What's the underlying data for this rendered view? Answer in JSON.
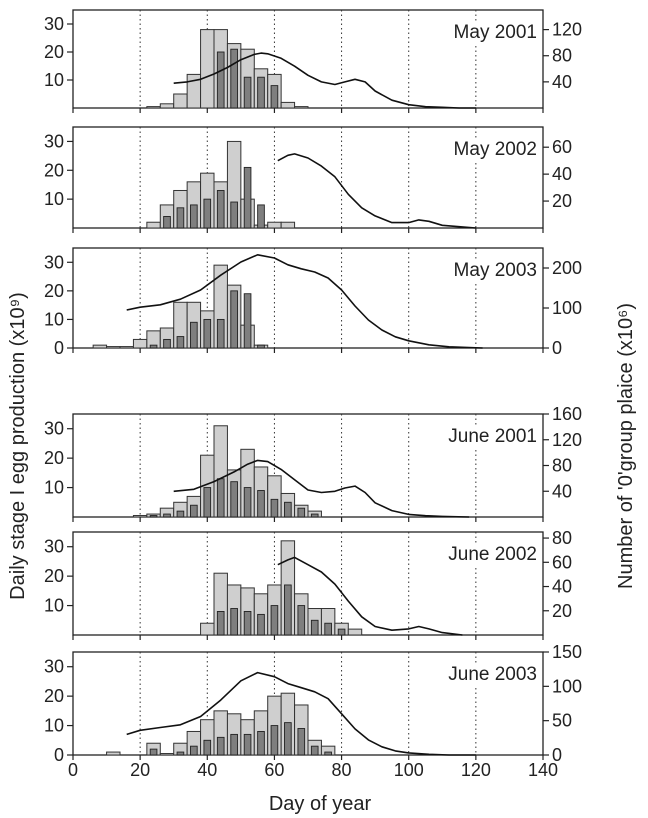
{
  "figure": {
    "ylabel_left": "Daily stage I egg production (x10⁹)",
    "ylabel_right": "Number of '0'group plaice (x10⁶)",
    "xlabel": "Day of year"
  },
  "chart_data": [
    {
      "type": "bar",
      "title": "May 2001",
      "x_axis": {
        "range": [
          0,
          140
        ],
        "ticks": [
          0,
          20,
          40,
          60,
          80,
          100,
          120,
          140
        ],
        "tick_labels_shown": false,
        "label": ""
      },
      "y_left": {
        "range": [
          0,
          35
        ],
        "ticks": [
          10,
          20,
          30
        ]
      },
      "y_right": {
        "range": [
          0,
          150
        ],
        "ticks": [
          40,
          80,
          120
        ]
      },
      "dotted_gridlines_x": [
        20,
        40,
        60,
        80,
        100,
        120
      ],
      "bin_centers": [
        24,
        28,
        32,
        36,
        40,
        44,
        48,
        52,
        56,
        60,
        64,
        68,
        72,
        76,
        80,
        84,
        88,
        92
      ],
      "light_bars": [
        0.5,
        1.5,
        5,
        12,
        28,
        28,
        23,
        21,
        14,
        12,
        2,
        0.5,
        0,
        0,
        0,
        0,
        0,
        0
      ],
      "dark_bars": [
        0,
        0,
        0,
        0,
        0,
        20,
        21,
        11,
        11,
        8,
        0,
        0,
        0,
        0,
        0,
        0,
        0,
        0
      ],
      "curve": [
        [
          30,
          38
        ],
        [
          34,
          40
        ],
        [
          38,
          44
        ],
        [
          42,
          52
        ],
        [
          46,
          62
        ],
        [
          50,
          74
        ],
        [
          54,
          82
        ],
        [
          56,
          84
        ],
        [
          58,
          83
        ],
        [
          62,
          76
        ],
        [
          66,
          64
        ],
        [
          70,
          50
        ],
        [
          74,
          40
        ],
        [
          78,
          36
        ],
        [
          81,
          40
        ],
        [
          84,
          44
        ],
        [
          87,
          40
        ],
        [
          90,
          26
        ],
        [
          95,
          12
        ],
        [
          100,
          5
        ],
        [
          105,
          2
        ],
        [
          110,
          1
        ],
        [
          115,
          0
        ],
        [
          120,
          0
        ]
      ]
    },
    {
      "type": "bar",
      "title": "May 2002",
      "x_axis": {
        "range": [
          0,
          140
        ],
        "ticks": [
          0,
          20,
          40,
          60,
          80,
          100,
          120,
          140
        ],
        "tick_labels_shown": false,
        "label": ""
      },
      "y_left": {
        "range": [
          0,
          35
        ],
        "ticks": [
          10,
          20,
          30
        ]
      },
      "y_right": {
        "range": [
          0,
          75
        ],
        "ticks": [
          20,
          40,
          60
        ]
      },
      "dotted_gridlines_x": [
        20,
        40,
        60,
        80,
        100,
        120
      ],
      "bin_centers": [
        24,
        28,
        32,
        36,
        40,
        44,
        48,
        52,
        56,
        60,
        64,
        68,
        72,
        76,
        80,
        84,
        88,
        92
      ],
      "light_bars": [
        2,
        8,
        13,
        16,
        19,
        16,
        30,
        10,
        1,
        2,
        2,
        0,
        0,
        0,
        0,
        0,
        0,
        0
      ],
      "dark_bars": [
        0,
        4,
        7,
        8,
        10,
        13,
        9,
        21,
        8,
        0,
        0,
        0,
        0,
        0,
        0,
        0,
        0,
        0
      ],
      "curve": [
        [
          61,
          50
        ],
        [
          64,
          54
        ],
        [
          66,
          55
        ],
        [
          70,
          52
        ],
        [
          74,
          46
        ],
        [
          78,
          38
        ],
        [
          82,
          25
        ],
        [
          86,
          15
        ],
        [
          90,
          9
        ],
        [
          95,
          4
        ],
        [
          100,
          4
        ],
        [
          103,
          6
        ],
        [
          106,
          5
        ],
        [
          110,
          2
        ],
        [
          115,
          1
        ],
        [
          120,
          0
        ]
      ]
    },
    {
      "type": "bar",
      "title": "May 2003",
      "x_axis": {
        "range": [
          0,
          140
        ],
        "ticks": [
          0,
          20,
          40,
          60,
          80,
          100,
          120,
          140
        ],
        "tick_labels_shown": false,
        "label": ""
      },
      "y_left": {
        "range": [
          0,
          35
        ],
        "ticks": [
          0,
          10,
          20,
          30
        ]
      },
      "y_right": {
        "range": [
          0,
          250
        ],
        "ticks": [
          0,
          100,
          200
        ]
      },
      "dotted_gridlines_x": [
        20,
        40,
        60,
        80,
        100,
        120
      ],
      "bin_centers": [
        8,
        12,
        16,
        20,
        24,
        28,
        32,
        36,
        40,
        44,
        48,
        52,
        56,
        60,
        64,
        68,
        72,
        76,
        80,
        84,
        88,
        92
      ],
      "light_bars": [
        1,
        0.5,
        0.5,
        3,
        6,
        7,
        16,
        16,
        13,
        29,
        22,
        8,
        1,
        0,
        0,
        0,
        0,
        0,
        0,
        0,
        0,
        0
      ],
      "dark_bars": [
        0,
        0,
        0,
        0,
        1,
        3,
        4,
        9,
        10,
        10,
        20,
        19,
        1,
        0,
        0,
        0,
        0,
        0,
        0,
        0,
        0,
        0
      ],
      "curve": [
        [
          16,
          95
        ],
        [
          20,
          102
        ],
        [
          26,
          108
        ],
        [
          32,
          122
        ],
        [
          38,
          145
        ],
        [
          44,
          182
        ],
        [
          50,
          215
        ],
        [
          55,
          233
        ],
        [
          60,
          225
        ],
        [
          64,
          208
        ],
        [
          68,
          198
        ],
        [
          72,
          190
        ],
        [
          76,
          175
        ],
        [
          80,
          145
        ],
        [
          84,
          105
        ],
        [
          88,
          70
        ],
        [
          92,
          45
        ],
        [
          96,
          28
        ],
        [
          100,
          18
        ],
        [
          106,
          8
        ],
        [
          112,
          3
        ],
        [
          118,
          1
        ],
        [
          122,
          0
        ]
      ]
    },
    {
      "type": "bar",
      "title": "June 2001",
      "x_axis": {
        "range": [
          0,
          140
        ],
        "ticks": [
          0,
          20,
          40,
          60,
          80,
          100,
          120,
          140
        ],
        "tick_labels_shown": false,
        "label": ""
      },
      "y_left": {
        "range": [
          0,
          35
        ],
        "ticks": [
          10,
          20,
          30
        ]
      },
      "y_right": {
        "range": [
          0,
          160
        ],
        "ticks": [
          40,
          80,
          120,
          160
        ]
      },
      "dotted_gridlines_x": [
        20,
        40,
        60,
        80,
        100,
        120
      ],
      "bin_centers": [
        16,
        20,
        24,
        28,
        32,
        36,
        40,
        44,
        48,
        52,
        56,
        60,
        64,
        68,
        72,
        76,
        80,
        84,
        88,
        92
      ],
      "light_bars": [
        0,
        0.5,
        1,
        3,
        5,
        7,
        21,
        31,
        16,
        23,
        17,
        14,
        8,
        4,
        2,
        0,
        0,
        0,
        0,
        0
      ],
      "dark_bars": [
        0,
        0,
        0.5,
        1,
        2,
        4,
        10,
        13,
        12,
        10,
        9,
        6,
        5,
        3,
        1,
        0,
        0,
        0,
        0,
        0
      ],
      "curve": [
        [
          30,
          40
        ],
        [
          36,
          43
        ],
        [
          42,
          55
        ],
        [
          48,
          70
        ],
        [
          52,
          82
        ],
        [
          55,
          88
        ],
        [
          58,
          86
        ],
        [
          62,
          74
        ],
        [
          66,
          58
        ],
        [
          70,
          42
        ],
        [
          74,
          38
        ],
        [
          78,
          40
        ],
        [
          81,
          45
        ],
        [
          84,
          48
        ],
        [
          87,
          38
        ],
        [
          90,
          22
        ],
        [
          95,
          10
        ],
        [
          100,
          4
        ],
        [
          105,
          2
        ],
        [
          110,
          1
        ],
        [
          118,
          0
        ]
      ]
    },
    {
      "type": "bar",
      "title": "June 2002",
      "x_axis": {
        "range": [
          0,
          140
        ],
        "ticks": [
          0,
          20,
          40,
          60,
          80,
          100,
          120,
          140
        ],
        "tick_labels_shown": false,
        "label": ""
      },
      "y_left": {
        "range": [
          0,
          35
        ],
        "ticks": [
          10,
          20,
          30
        ]
      },
      "y_right": {
        "range": [
          0,
          85
        ],
        "ticks": [
          20,
          40,
          60,
          80
        ]
      },
      "dotted_gridlines_x": [
        20,
        40,
        60,
        80,
        100,
        120
      ],
      "bin_centers": [
        36,
        40,
        44,
        48,
        52,
        56,
        60,
        64,
        68,
        72,
        76,
        80,
        84,
        88,
        92
      ],
      "light_bars": [
        0,
        4,
        21,
        17,
        16,
        14,
        17,
        32,
        14,
        9,
        9,
        4,
        2,
        0,
        0
      ],
      "dark_bars": [
        0,
        0,
        8,
        9,
        8,
        7,
        10,
        17,
        10,
        5,
        4,
        2,
        0,
        0,
        0
      ],
      "curve": [
        [
          61,
          58
        ],
        [
          64,
          62
        ],
        [
          66,
          64
        ],
        [
          70,
          58
        ],
        [
          74,
          52
        ],
        [
          78,
          42
        ],
        [
          82,
          28
        ],
        [
          86,
          15
        ],
        [
          90,
          7
        ],
        [
          95,
          4
        ],
        [
          100,
          5
        ],
        [
          103,
          7
        ],
        [
          106,
          5
        ],
        [
          110,
          2
        ],
        [
          116,
          0
        ]
      ]
    },
    {
      "type": "bar",
      "title": "June 2003",
      "x_axis": {
        "range": [
          0,
          140
        ],
        "ticks": [
          0,
          20,
          40,
          60,
          80,
          100,
          120,
          140
        ],
        "tick_labels_shown": true,
        "label": "Day of year"
      },
      "y_left": {
        "range": [
          0,
          35
        ],
        "ticks": [
          0,
          10,
          20,
          30
        ]
      },
      "y_right": {
        "range": [
          0,
          150
        ],
        "ticks": [
          0,
          50,
          100,
          150
        ]
      },
      "dotted_gridlines_x": [
        20,
        40,
        60,
        80,
        100,
        120
      ],
      "bin_centers": [
        12,
        16,
        20,
        24,
        28,
        32,
        36,
        40,
        44,
        48,
        52,
        56,
        60,
        64,
        68,
        72,
        76,
        80,
        84,
        88
      ],
      "light_bars": [
        1,
        0,
        0,
        4,
        0.5,
        4,
        8,
        12,
        15,
        14,
        12,
        15,
        20,
        21,
        17,
        5,
        3,
        0,
        0,
        0
      ],
      "dark_bars": [
        0,
        0,
        0,
        2,
        0,
        1,
        3,
        5,
        6,
        7,
        7,
        8,
        10,
        11,
        9,
        3,
        1,
        0,
        0,
        0
      ],
      "curve": [
        [
          16,
          30
        ],
        [
          20,
          36
        ],
        [
          26,
          40
        ],
        [
          32,
          44
        ],
        [
          38,
          56
        ],
        [
          44,
          80
        ],
        [
          50,
          108
        ],
        [
          55,
          120
        ],
        [
          60,
          114
        ],
        [
          64,
          104
        ],
        [
          68,
          98
        ],
        [
          72,
          92
        ],
        [
          76,
          82
        ],
        [
          80,
          60
        ],
        [
          84,
          38
        ],
        [
          88,
          22
        ],
        [
          92,
          12
        ],
        [
          96,
          6
        ],
        [
          100,
          3
        ],
        [
          106,
          1
        ],
        [
          112,
          0
        ],
        [
          120,
          0
        ]
      ]
    }
  ]
}
